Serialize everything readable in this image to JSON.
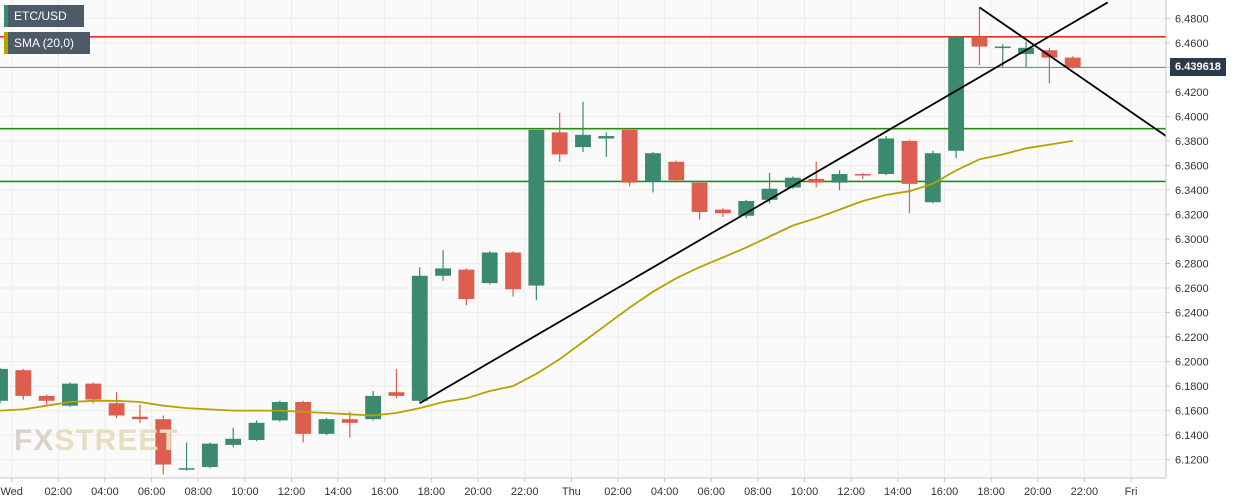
{
  "legend": {
    "symbol": "ETC/USD",
    "indicator": "SMA (20,0)",
    "symbol_color": "#3b8a6e",
    "indicator_color": "#b8a200"
  },
  "last_price_label": "6.439618",
  "watermark": {
    "brand_left": "FX",
    "brand_right": "STREET"
  },
  "chart_data": {
    "type": "candlestick",
    "title": "",
    "xlabel": "",
    "ylabel": "",
    "ylim": [
      6.105,
      6.495
    ],
    "y_ticks": [
      6.12,
      6.14,
      6.16,
      6.18,
      6.2,
      6.22,
      6.24,
      6.26,
      6.28,
      6.3,
      6.32,
      6.34,
      6.36,
      6.38,
      6.4,
      6.42,
      6.44,
      6.46,
      6.48
    ],
    "y_tick_labels": [
      "6.1200",
      "6.1400",
      "6.1600",
      "6.1800",
      "6.2000",
      "6.2200",
      "6.2400",
      "6.2600",
      "6.2800",
      "6.3000",
      "6.3200",
      "6.3400",
      "6.3600",
      "6.3800",
      "6.4000",
      "6.4200",
      "6.4400",
      "6.4600",
      "6.4800"
    ],
    "x_range": [
      -0.5,
      49.5
    ],
    "x_ticks": [
      {
        "x": 0,
        "label": "Wed"
      },
      {
        "x": 2,
        "label": "02:00"
      },
      {
        "x": 4,
        "label": "04:00"
      },
      {
        "x": 6,
        "label": "06:00"
      },
      {
        "x": 8,
        "label": "08:00"
      },
      {
        "x": 10,
        "label": "10:00"
      },
      {
        "x": 12,
        "label": "12:00"
      },
      {
        "x": 14,
        "label": "14:00"
      },
      {
        "x": 16,
        "label": "16:00"
      },
      {
        "x": 18,
        "label": "18:00"
      },
      {
        "x": 20,
        "label": "20:00"
      },
      {
        "x": 22,
        "label": "22:00"
      },
      {
        "x": 24,
        "label": "Thu"
      },
      {
        "x": 26,
        "label": "02:00"
      },
      {
        "x": 28,
        "label": "04:00"
      },
      {
        "x": 30,
        "label": "06:00"
      },
      {
        "x": 32,
        "label": "08:00"
      },
      {
        "x": 34,
        "label": "10:00"
      },
      {
        "x": 36,
        "label": "12:00"
      },
      {
        "x": 38,
        "label": "14:00"
      },
      {
        "x": 40,
        "label": "16:00"
      },
      {
        "x": 42,
        "label": "18:00"
      },
      {
        "x": 44,
        "label": "20:00"
      },
      {
        "x": 46,
        "label": "22:00"
      },
      {
        "x": 48,
        "label": "Fri"
      }
    ],
    "up_color": "#3b8a6e",
    "down_color": "#dd5e4f",
    "candles": [
      {
        "x": -0.5,
        "o": 6.168,
        "h": 6.195,
        "l": 6.166,
        "c": 6.194
      },
      {
        "x": 0.5,
        "o": 6.193,
        "h": 6.194,
        "l": 6.169,
        "c": 6.172
      },
      {
        "x": 1.5,
        "o": 6.172,
        "h": 6.173,
        "l": 6.165,
        "c": 6.168
      },
      {
        "x": 2.5,
        "o": 6.164,
        "h": 6.183,
        "l": 6.163,
        "c": 6.182
      },
      {
        "x": 3.5,
        "o": 6.182,
        "h": 6.183,
        "l": 6.166,
        "c": 6.169
      },
      {
        "x": 4.5,
        "o": 6.166,
        "h": 6.175,
        "l": 6.154,
        "c": 6.156
      },
      {
        "x": 5.5,
        "o": 6.155,
        "h": 6.165,
        "l": 6.15,
        "c": 6.153
      },
      {
        "x": 6.5,
        "o": 6.153,
        "h": 6.156,
        "l": 6.108,
        "c": 6.116
      },
      {
        "x": 7.5,
        "o": 6.113,
        "h": 6.134,
        "l": 6.111,
        "c": 6.113
      },
      {
        "x": 8.5,
        "o": 6.114,
        "h": 6.134,
        "l": 6.113,
        "c": 6.133
      },
      {
        "x": 9.5,
        "o": 6.132,
        "h": 6.146,
        "l": 6.13,
        "c": 6.137
      },
      {
        "x": 10.5,
        "o": 6.136,
        "h": 6.152,
        "l": 6.135,
        "c": 6.15
      },
      {
        "x": 11.5,
        "o": 6.152,
        "h": 6.168,
        "l": 6.151,
        "c": 6.167
      },
      {
        "x": 12.5,
        "o": 6.167,
        "h": 6.168,
        "l": 6.134,
        "c": 6.141
      },
      {
        "x": 13.5,
        "o": 6.141,
        "h": 6.154,
        "l": 6.14,
        "c": 6.153
      },
      {
        "x": 14.5,
        "o": 6.153,
        "h": 6.159,
        "l": 6.138,
        "c": 6.15
      },
      {
        "x": 15.5,
        "o": 6.153,
        "h": 6.176,
        "l": 6.152,
        "c": 6.172
      },
      {
        "x": 16.5,
        "o": 6.175,
        "h": 6.194,
        "l": 6.17,
        "c": 6.172
      },
      {
        "x": 17.5,
        "o": 6.168,
        "h": 6.277,
        "l": 6.166,
        "c": 6.27
      },
      {
        "x": 18.5,
        "o": 6.27,
        "h": 6.291,
        "l": 6.266,
        "c": 6.276
      },
      {
        "x": 19.5,
        "o": 6.275,
        "h": 6.276,
        "l": 6.246,
        "c": 6.251
      },
      {
        "x": 20.5,
        "o": 6.264,
        "h": 6.29,
        "l": 6.263,
        "c": 6.289
      },
      {
        "x": 21.5,
        "o": 6.289,
        "h": 6.29,
        "l": 6.253,
        "c": 6.259
      },
      {
        "x": 22.5,
        "o": 6.262,
        "h": 6.389,
        "l": 6.25,
        "c": 6.389
      },
      {
        "x": 23.5,
        "o": 6.387,
        "h": 6.403,
        "l": 6.363,
        "c": 6.369
      },
      {
        "x": 24.5,
        "o": 6.375,
        "h": 6.412,
        "l": 6.371,
        "c": 6.385
      },
      {
        "x": 25.5,
        "o": 6.382,
        "h": 6.387,
        "l": 6.367,
        "c": 6.384
      },
      {
        "x": 26.5,
        "o": 6.389,
        "h": 6.39,
        "l": 6.343,
        "c": 6.346
      },
      {
        "x": 27.5,
        "o": 6.347,
        "h": 6.371,
        "l": 6.338,
        "c": 6.37
      },
      {
        "x": 28.5,
        "o": 6.363,
        "h": 6.364,
        "l": 6.346,
        "c": 6.348
      },
      {
        "x": 29.5,
        "o": 6.346,
        "h": 6.347,
        "l": 6.316,
        "c": 6.322
      },
      {
        "x": 30.5,
        "o": 6.324,
        "h": 6.325,
        "l": 6.318,
        "c": 6.321
      },
      {
        "x": 31.5,
        "o": 6.319,
        "h": 6.332,
        "l": 6.317,
        "c": 6.331
      },
      {
        "x": 32.5,
        "o": 6.332,
        "h": 6.354,
        "l": 6.329,
        "c": 6.341
      },
      {
        "x": 33.5,
        "o": 6.342,
        "h": 6.351,
        "l": 6.341,
        "c": 6.35
      },
      {
        "x": 34.5,
        "o": 6.349,
        "h": 6.363,
        "l": 6.342,
        "c": 6.346
      },
      {
        "x": 35.5,
        "o": 6.346,
        "h": 6.356,
        "l": 6.34,
        "c": 6.353
      },
      {
        "x": 36.5,
        "o": 6.353,
        "h": 6.354,
        "l": 6.349,
        "c": 6.352
      },
      {
        "x": 37.5,
        "o": 6.353,
        "h": 6.384,
        "l": 6.352,
        "c": 6.382
      },
      {
        "x": 38.5,
        "o": 6.38,
        "h": 6.381,
        "l": 6.321,
        "c": 6.345
      },
      {
        "x": 39.5,
        "o": 6.33,
        "h": 6.372,
        "l": 6.329,
        "c": 6.37
      },
      {
        "x": 40.5,
        "o": 6.372,
        "h": 6.466,
        "l": 6.366,
        "c": 6.465
      },
      {
        "x": 41.5,
        "o": 6.465,
        "h": 6.489,
        "l": 6.442,
        "c": 6.457
      },
      {
        "x": 42.5,
        "o": 6.456,
        "h": 6.459,
        "l": 6.44,
        "c": 6.457
      },
      {
        "x": 43.5,
        "o": 6.451,
        "h": 6.461,
        "l": 6.44,
        "c": 6.456
      },
      {
        "x": 44.5,
        "o": 6.454,
        "h": 6.456,
        "l": 6.427,
        "c": 6.448
      },
      {
        "x": 45.5,
        "o": 6.448,
        "h": 6.449,
        "l": 6.439,
        "c": 6.44
      }
    ],
    "sma": {
      "name": "SMA (20,0)",
      "color": "#b8a200",
      "points": [
        [
          -0.5,
          6.16
        ],
        [
          0.5,
          6.161
        ],
        [
          1.5,
          6.164
        ],
        [
          2.5,
          6.167
        ],
        [
          3.5,
          6.168
        ],
        [
          4.5,
          6.168
        ],
        [
          5.5,
          6.167
        ],
        [
          6.5,
          6.164
        ],
        [
          7.5,
          6.162
        ],
        [
          8.5,
          6.161
        ],
        [
          9.5,
          6.16
        ],
        [
          10.5,
          6.16
        ],
        [
          11.5,
          6.16
        ],
        [
          12.5,
          6.159
        ],
        [
          13.5,
          6.158
        ],
        [
          14.5,
          6.157
        ],
        [
          15.5,
          6.156
        ],
        [
          16.5,
          6.158
        ],
        [
          17.5,
          6.162
        ],
        [
          18.5,
          6.167
        ],
        [
          19.5,
          6.17
        ],
        [
          20.5,
          6.176
        ],
        [
          21.5,
          6.18
        ],
        [
          22.5,
          6.19
        ],
        [
          23.5,
          6.202
        ],
        [
          24.5,
          6.216
        ],
        [
          25.5,
          6.23
        ],
        [
          26.5,
          6.244
        ],
        [
          27.5,
          6.257
        ],
        [
          28.5,
          6.268
        ],
        [
          29.5,
          6.277
        ],
        [
          30.5,
          6.285
        ],
        [
          31.5,
          6.293
        ],
        [
          32.5,
          6.302
        ],
        [
          33.5,
          6.311
        ],
        [
          34.5,
          6.317
        ],
        [
          35.5,
          6.324
        ],
        [
          36.5,
          6.331
        ],
        [
          37.5,
          6.336
        ],
        [
          38.5,
          6.339
        ],
        [
          39.5,
          6.345
        ],
        [
          40.5,
          6.356
        ],
        [
          41.5,
          6.365
        ],
        [
          42.5,
          6.369
        ],
        [
          43.5,
          6.374
        ],
        [
          44.5,
          6.377
        ],
        [
          45.5,
          6.38
        ]
      ]
    },
    "horizontal_lines": [
      {
        "y": 6.465,
        "color": "#e0302a",
        "name": "resistance"
      },
      {
        "y": 6.39,
        "color": "#2b8a12",
        "name": "support-upper"
      },
      {
        "y": 6.347,
        "color": "#2b8a12",
        "name": "support-lower"
      },
      {
        "y": 6.44,
        "color": "#6a7f96",
        "name": "last-price"
      }
    ],
    "trendlines": [
      {
        "name": "ascending-trendline",
        "x1": 17.5,
        "y1": 6.166,
        "x2": 47.0,
        "y2": 6.493,
        "color": "#000000"
      },
      {
        "name": "descending-trendline",
        "x1": 41.5,
        "y1": 6.489,
        "x2": 49.5,
        "y2": 6.384,
        "color": "#000000"
      }
    ]
  }
}
